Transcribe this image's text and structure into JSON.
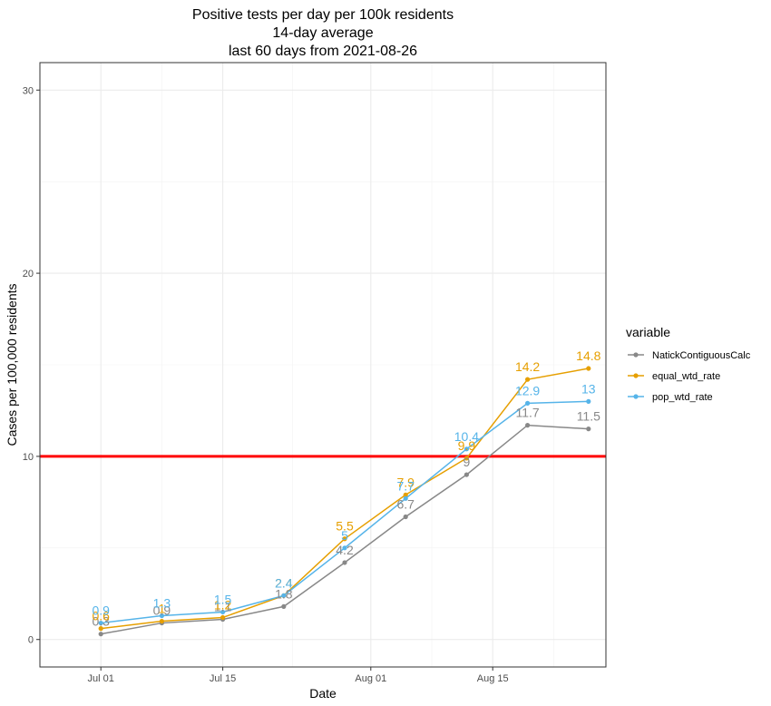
{
  "chart_data": {
    "type": "line",
    "title_lines": [
      "Positive tests per day per 100k residents",
      "14-day average",
      "last 60 days from 2021-08-26"
    ],
    "xlabel": "Date",
    "ylabel": "Cases per 100,000 residents",
    "x": [
      "2021-07-01",
      "2021-07-08",
      "2021-07-15",
      "2021-07-22",
      "2021-07-29",
      "2021-08-05",
      "2021-08-12",
      "2021-08-19",
      "2021-08-26"
    ],
    "xlim": [
      "2021-06-24",
      "2021-08-28"
    ],
    "ylim": [
      -1.5,
      31.5
    ],
    "x_ticks": [
      {
        "date": "2021-07-01",
        "label": "Jul 01"
      },
      {
        "date": "2021-07-15",
        "label": "Jul 15"
      },
      {
        "date": "2021-08-01",
        "label": "Aug 01"
      },
      {
        "date": "2021-08-15",
        "label": "Aug 15"
      }
    ],
    "y_ticks": [
      0,
      10,
      20,
      30
    ],
    "grid": true,
    "reference_line": {
      "y": 10,
      "color": "#ff0000"
    },
    "legend": {
      "title": "variable",
      "position": "right"
    },
    "series": [
      {
        "name": "NatickContiguousCalc",
        "color": "#888888",
        "values": [
          0.3,
          0.9,
          1.1,
          1.8,
          4.2,
          6.7,
          9,
          11.7,
          11.5
        ],
        "labels": [
          "0.3",
          "0.9",
          "1.1",
          "1.8",
          "4.2",
          "6.7",
          "9",
          "11.7",
          "11.5"
        ]
      },
      {
        "name": "equal_wtd_rate",
        "color": "#e69f00",
        "values": [
          0.6,
          1,
          1.2,
          2.4,
          5.5,
          7.9,
          9.9,
          14.2,
          14.8
        ],
        "labels": [
          "0.6",
          "1",
          "1.2",
          "2.4",
          "5.5",
          "7.9",
          "9.9",
          "14.2",
          "14.8"
        ]
      },
      {
        "name": "pop_wtd_rate",
        "color": "#56b4e9",
        "values": [
          0.9,
          1.3,
          1.5,
          2.4,
          5,
          7.7,
          10.4,
          12.9,
          13
        ],
        "labels": [
          "0.9",
          "1.3",
          "1.5",
          "2.4",
          "5",
          "7.7",
          "10.4",
          "12.9",
          "13"
        ]
      }
    ]
  }
}
